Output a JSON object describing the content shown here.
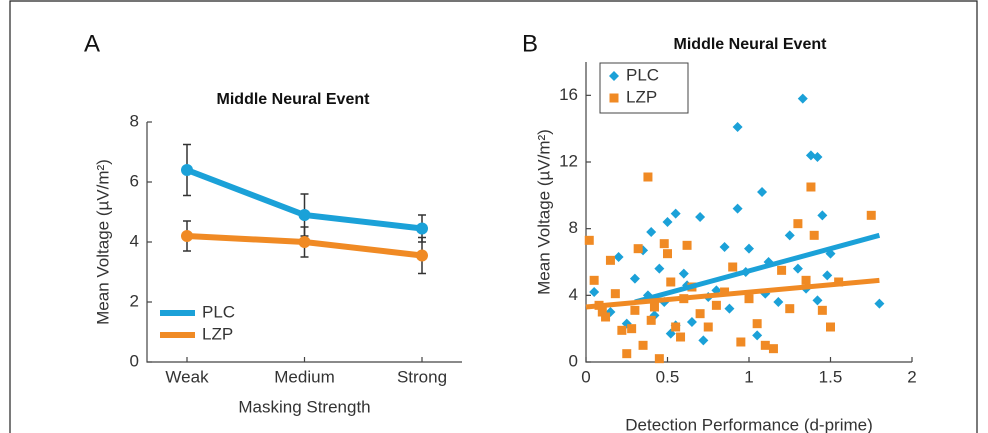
{
  "chart_data": [
    {
      "type": "line",
      "panel_label": "A",
      "title": "Middle Neural Event",
      "xlabel": "Masking Strength",
      "ylabel": "Mean Voltage (µV/m²)",
      "categories": [
        "Weak",
        "Medium",
        "Strong"
      ],
      "ylim": [
        0,
        8
      ],
      "yticks": [
        0,
        2,
        4,
        6,
        8
      ],
      "legend": "lower left",
      "series": [
        {
          "name": "PLC",
          "color": "#1ba1d8",
          "values": [
            6.4,
            4.9,
            4.45
          ],
          "errors": [
            0.85,
            0.7,
            0.45
          ]
        },
        {
          "name": "LZP",
          "color": "#f08a24",
          "values": [
            4.2,
            4.0,
            3.55
          ],
          "errors": [
            0.5,
            0.5,
            0.6
          ]
        }
      ]
    },
    {
      "type": "scatter",
      "panel_label": "B",
      "title": "Middle Neural Event",
      "xlabel": "Detection Performance (d-prime)",
      "ylabel": "Mean Voltage (µV/m²)",
      "xlim": [
        0,
        2
      ],
      "xticks": [
        0,
        0.5,
        1,
        1.5,
        2
      ],
      "ylim": [
        0,
        18
      ],
      "yticks": [
        0,
        4,
        8,
        12,
        16
      ],
      "legend": "upper left",
      "series": [
        {
          "name": "PLC",
          "color": "#1ba1d8",
          "marker": "diamond",
          "x": [
            0.05,
            0.15,
            0.2,
            0.25,
            0.3,
            0.35,
            0.38,
            0.4,
            0.42,
            0.45,
            0.48,
            0.5,
            0.52,
            0.55,
            0.55,
            0.6,
            0.62,
            0.65,
            0.7,
            0.72,
            0.75,
            0.8,
            0.85,
            0.88,
            0.93,
            0.93,
            0.98,
            1.0,
            1.05,
            1.08,
            1.1,
            1.12,
            1.18,
            1.25,
            1.3,
            1.33,
            1.35,
            1.38,
            1.42,
            1.42,
            1.45,
            1.48,
            1.5,
            1.8
          ],
          "values": [
            4.2,
            3.0,
            6.3,
            2.3,
            5.0,
            6.7,
            4.0,
            7.8,
            2.8,
            5.6,
            3.6,
            8.4,
            1.7,
            8.9,
            2.2,
            5.3,
            4.6,
            2.4,
            8.7,
            1.3,
            3.9,
            4.3,
            6.9,
            3.2,
            9.2,
            14.1,
            5.4,
            6.8,
            1.6,
            10.2,
            4.1,
            6.0,
            3.6,
            7.6,
            5.6,
            15.8,
            4.4,
            12.4,
            12.3,
            3.7,
            8.8,
            5.2,
            6.5,
            3.5
          ],
          "fit": {
            "x": [
              0.3,
              1.8
            ],
            "values": [
              3.6,
              7.6
            ]
          }
        },
        {
          "name": "LZP",
          "color": "#f08a24",
          "marker": "square",
          "x": [
            0.02,
            0.05,
            0.08,
            0.1,
            0.12,
            0.15,
            0.18,
            0.22,
            0.25,
            0.28,
            0.3,
            0.32,
            0.35,
            0.38,
            0.4,
            0.42,
            0.45,
            0.48,
            0.5,
            0.52,
            0.55,
            0.58,
            0.6,
            0.62,
            0.65,
            0.7,
            0.75,
            0.8,
            0.85,
            0.9,
            0.95,
            1.0,
            1.05,
            1.1,
            1.15,
            1.2,
            1.25,
            1.3,
            1.35,
            1.38,
            1.4,
            1.45,
            1.5,
            1.55,
            1.75
          ],
          "values": [
            7.3,
            4.9,
            3.4,
            3.0,
            2.7,
            6.1,
            4.1,
            1.9,
            0.5,
            2.0,
            3.1,
            6.8,
            1.0,
            11.1,
            2.5,
            3.3,
            0.2,
            7.1,
            6.5,
            4.8,
            2.1,
            1.5,
            3.8,
            7.0,
            4.5,
            2.9,
            2.1,
            3.4,
            4.2,
            5.7,
            1.2,
            3.8,
            2.3,
            1.0,
            0.8,
            5.5,
            3.2,
            8.3,
            4.9,
            10.5,
            7.6,
            3.1,
            2.1,
            4.8,
            8.8
          ],
          "fit": {
            "x": [
              0,
              1.8
            ],
            "values": [
              3.3,
              4.9
            ]
          }
        }
      ]
    }
  ]
}
